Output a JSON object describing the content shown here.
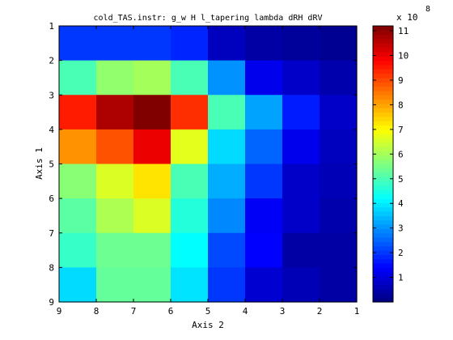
{
  "chart_data": {
    "type": "heatmap",
    "title": "cold_TAS.instr: g_w H l_tapering lambda dRH dRV",
    "xlabel": "Axis 2",
    "ylabel": "Axis 1",
    "x_tick_labels": [
      "9",
      "8",
      "7",
      "6",
      "5",
      "4",
      "3",
      "2",
      "1"
    ],
    "y_tick_labels": [
      "1",
      "2",
      "3",
      "4",
      "5",
      "6",
      "7",
      "8",
      "9"
    ],
    "colorbar": {
      "exponent_label": "x 10",
      "exponent_power": "8",
      "tick_labels": [
        "1",
        "2",
        "3",
        "4",
        "5",
        "6",
        "7",
        "8",
        "9",
        "10",
        "11"
      ],
      "range": [
        0.0,
        11.2
      ],
      "colormap": "jet"
    },
    "values": [
      [
        2.0,
        2.0,
        2.0,
        1.8,
        0.7,
        0.4,
        0.3,
        0.2
      ],
      [
        5.0,
        5.8,
        6.0,
        5.0,
        3.0,
        1.2,
        0.8,
        0.5
      ],
      [
        9.5,
        10.7,
        11.2,
        9.3,
        5.0,
        3.2,
        1.7,
        0.8
      ],
      [
        8.2,
        8.9,
        10.0,
        6.7,
        3.8,
        2.5,
        1.2,
        0.7
      ],
      [
        5.7,
        6.6,
        7.3,
        5.0,
        3.3,
        2.0,
        0.8,
        0.6
      ],
      [
        5.2,
        6.1,
        6.6,
        4.6,
        2.9,
        1.3,
        0.8,
        0.5
      ],
      [
        4.8,
        5.4,
        5.4,
        4.2,
        2.2,
        1.4,
        0.4,
        0.4
      ],
      [
        3.8,
        5.3,
        5.3,
        3.9,
        2.0,
        0.9,
        0.6,
        0.4
      ]
    ]
  }
}
